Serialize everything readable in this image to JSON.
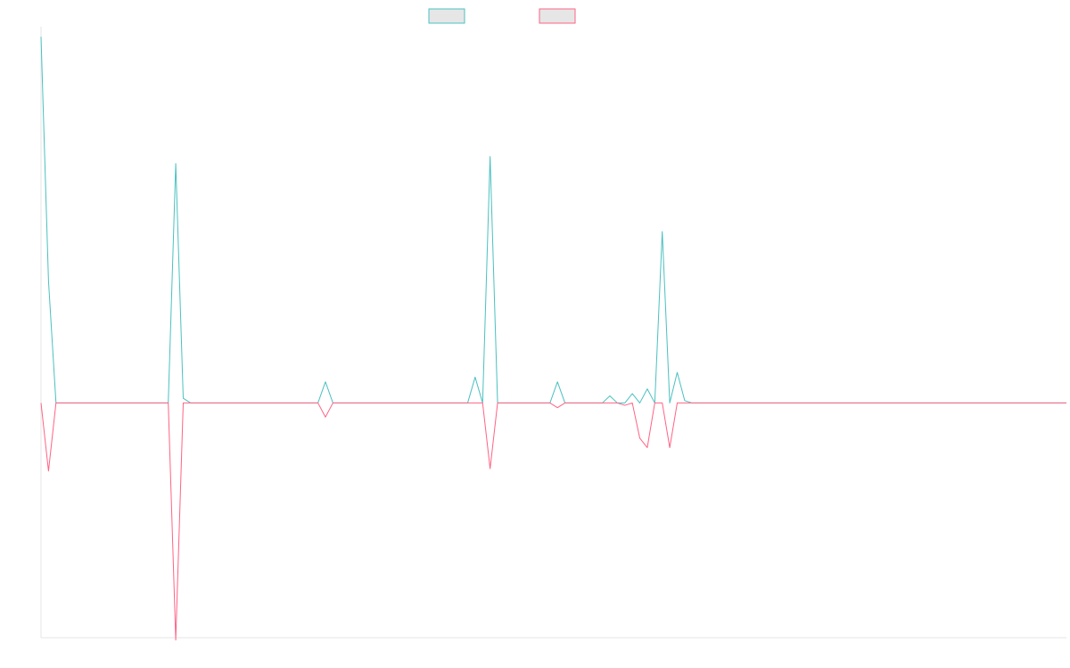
{
  "chart_data": {
    "type": "line",
    "legend_position": "top-center",
    "grid": false,
    "ylim": [
      -100,
      158
    ],
    "x": [
      0,
      1,
      2,
      3,
      4,
      5,
      6,
      7,
      8,
      9,
      10,
      11,
      12,
      13,
      14,
      15,
      16,
      17,
      18,
      19,
      20,
      21,
      22,
      23,
      24,
      25,
      26,
      27,
      28,
      29,
      30,
      31,
      32,
      33,
      34,
      35,
      36,
      37,
      38,
      39,
      40,
      41,
      42,
      43,
      44,
      45,
      46,
      47,
      48,
      49,
      50,
      51,
      52,
      53,
      54,
      55,
      56,
      57,
      58,
      59,
      60,
      61,
      62,
      63,
      64,
      65,
      66,
      67,
      68,
      69,
      70,
      71,
      72,
      73,
      74,
      75,
      76,
      77,
      78,
      79,
      80,
      81,
      82,
      83,
      84,
      85,
      86,
      87,
      88,
      89,
      90,
      91,
      92,
      93,
      94,
      95,
      96,
      97,
      98,
      99,
      100,
      101,
      102,
      103,
      104,
      105,
      106,
      107,
      108,
      109,
      110,
      111,
      112,
      113,
      114,
      115,
      116,
      117,
      118,
      119,
      120,
      121,
      122,
      123,
      124,
      125,
      126,
      127,
      128,
      129,
      130,
      131,
      132,
      133,
      134,
      135,
      136,
      137
    ],
    "series": [
      {
        "name": "",
        "color": "#4bc0c0",
        "values": [
          156,
          52,
          0,
          0,
          0,
          0,
          0,
          0,
          0,
          0,
          0,
          0,
          0,
          0,
          0,
          0,
          0,
          0,
          102,
          2,
          0,
          0,
          0,
          0,
          0,
          0,
          0,
          0,
          0,
          0,
          0,
          0,
          0,
          0,
          0,
          0,
          0,
          0,
          9,
          0,
          0,
          0,
          0,
          0,
          0,
          0,
          0,
          0,
          0,
          0,
          0,
          0,
          0,
          0,
          0,
          0,
          0,
          0,
          11,
          0,
          105,
          0,
          0,
          0,
          0,
          0,
          0,
          0,
          0,
          9,
          0,
          0,
          0,
          0,
          0,
          0,
          3,
          0,
          0,
          4,
          0,
          6,
          0,
          73,
          0,
          13,
          1,
          0,
          0,
          0,
          0,
          0,
          0,
          0,
          0,
          0,
          0,
          0,
          0,
          0,
          0,
          0,
          0,
          0,
          0,
          0,
          0,
          0,
          0,
          0,
          0,
          0,
          0,
          0,
          0,
          0,
          0,
          0,
          0,
          0,
          0,
          0,
          0,
          0,
          0,
          0,
          0,
          0,
          0,
          0,
          0,
          0,
          0,
          0,
          0,
          0,
          0,
          0
        ]
      },
      {
        "name": "",
        "color": "#ff6384",
        "values": [
          0,
          -29,
          0,
          0,
          0,
          0,
          0,
          0,
          0,
          0,
          0,
          0,
          0,
          0,
          0,
          0,
          0,
          0,
          -101,
          0,
          0,
          0,
          0,
          0,
          0,
          0,
          0,
          0,
          0,
          0,
          0,
          0,
          0,
          0,
          0,
          0,
          0,
          0,
          -6,
          0,
          0,
          0,
          0,
          0,
          0,
          0,
          0,
          0,
          0,
          0,
          0,
          0,
          0,
          0,
          0,
          0,
          0,
          0,
          0,
          0,
          -28,
          0,
          0,
          0,
          0,
          0,
          0,
          0,
          0,
          -2,
          0,
          0,
          0,
          0,
          0,
          0,
          0,
          0,
          -1,
          0,
          -15,
          -19,
          0,
          0,
          -19,
          0,
          0,
          0,
          0,
          0,
          0,
          0,
          0,
          0,
          0,
          0,
          0,
          0,
          0,
          0,
          0,
          0,
          0,
          0,
          0,
          0,
          0,
          0,
          0,
          0,
          0,
          0,
          0,
          0,
          0,
          0,
          0,
          0,
          0,
          0,
          0,
          0,
          0,
          0,
          0,
          0,
          0,
          0,
          0,
          0,
          0,
          0,
          0,
          0,
          0,
          0,
          0,
          0
        ]
      }
    ]
  },
  "legend": [
    {
      "label": "",
      "color": "#4bc0c0"
    },
    {
      "label": "",
      "color": "#ff6384"
    }
  ]
}
